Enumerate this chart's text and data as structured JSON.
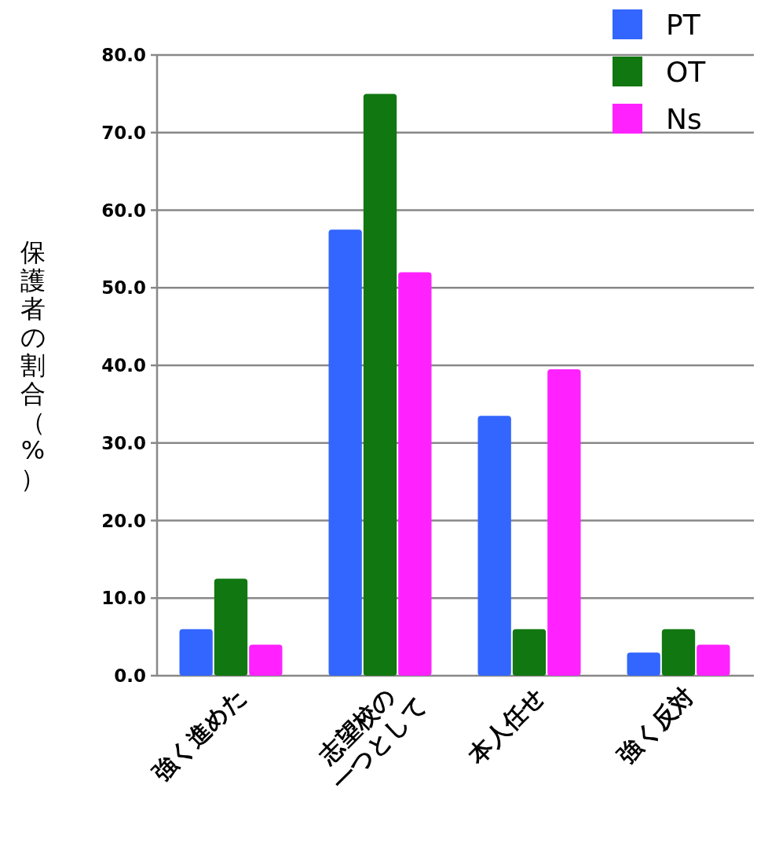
{
  "chart_data": {
    "type": "bar",
    "ylabel": "保護者の割合（%）",
    "categories": [
      "強く進めた",
      "志望校の一つとして",
      "本人任せ",
      "強く反対"
    ],
    "series": [
      {
        "name": "PT",
        "color": "#3366ff",
        "values": [
          6.0,
          57.5,
          33.5,
          3.0
        ]
      },
      {
        "name": "OT",
        "color": "#117711",
        "values": [
          12.5,
          75.0,
          6.0,
          6.0
        ]
      },
      {
        "name": "Ns",
        "color": "#ff22ff",
        "values": [
          4.0,
          52.0,
          39.5,
          4.0
        ]
      }
    ],
    "ylim": [
      0,
      80
    ],
    "yticks": [
      {
        "value": 0,
        "label": "0.0"
      },
      {
        "value": 10,
        "label": "10.0"
      },
      {
        "value": 20,
        "label": "20.0"
      },
      {
        "value": 30,
        "label": "30.0"
      },
      {
        "value": 40,
        "label": "40.0"
      },
      {
        "value": 50,
        "label": "50.0"
      },
      {
        "value": 60,
        "label": "60.0"
      },
      {
        "value": 70,
        "label": "70.0"
      },
      {
        "value": 80,
        "label": "80.0"
      }
    ],
    "grid": "y",
    "legend": "top right"
  }
}
